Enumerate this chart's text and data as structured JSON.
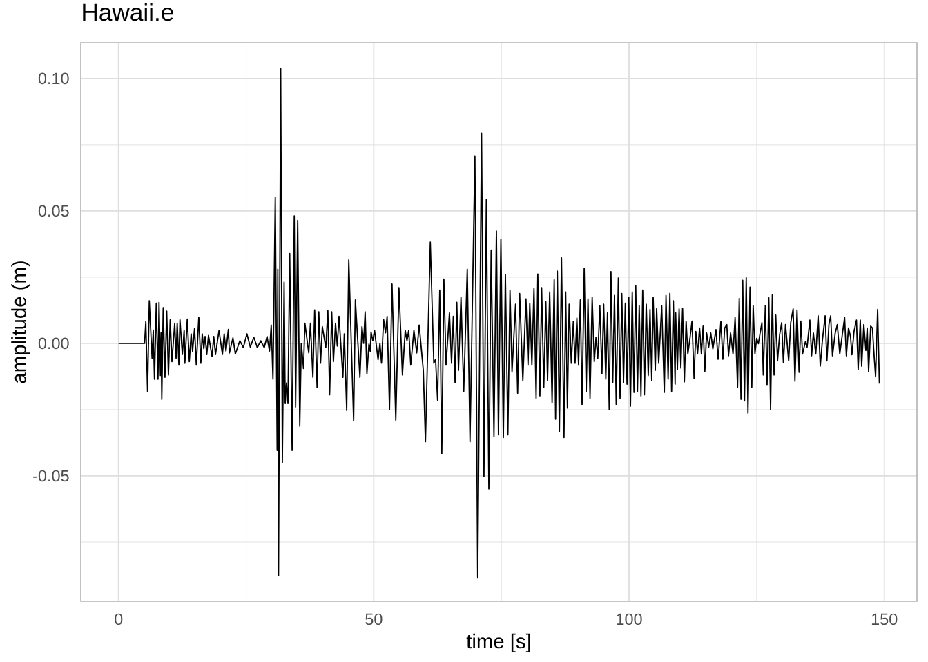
{
  "chart_data": {
    "type": "line",
    "title": "Hawaii.e",
    "xlabel": "time [s]",
    "ylabel": "amplitude (m)",
    "x": [
      0,
      5.1,
      5.34,
      5.68,
      6.02,
      6.57,
      6.8,
      7.04,
      7.39,
      7.73,
      7.93,
      8.2,
      8.33,
      8.47,
      8.75,
      9.09,
      9.43,
      9.77,
      10.12,
      10.46,
      11.0,
      11.27,
      11.49,
      11.82,
      12.03,
      12.5,
      12.85,
      12.99,
      13.46,
      13.86,
      14.22,
      14.5,
      14.89,
      15.23,
      15.72,
      16.12,
      16.39,
      16.7,
      16.95,
      17.28,
      17.62,
      18.31,
      18.65,
      18.99,
      19.68,
      20.35,
      20.69,
      21.04,
      21.51,
      21.72,
      22.41,
      22.88,
      23.77,
      24.45,
      25.14,
      25.81,
      26.5,
      27.18,
      27.86,
      28.54,
      29.09,
      29.57,
      29.91,
      30.25,
      30.7,
      31.07,
      31.2,
      31.34,
      31.76,
      32.09,
      32.43,
      32.64,
      32.9,
      33.19,
      33.53,
      34.0,
      34.42,
      34.69,
      35.09,
      35.5,
      35.8,
      36.23,
      36.5,
      37.26,
      37.59,
      38.07,
      38.42,
      38.89,
      39.23,
      39.57,
      39.92,
      40.6,
      41.0,
      41.35,
      41.76,
      42.09,
      42.51,
      42.85,
      43.19,
      43.95,
      44.22,
      44.69,
      45.1,
      46.05,
      46.39,
      47.28,
      47.69,
      48.0,
      48.31,
      48.65,
      49.05,
      49.3,
      49.47,
      49.8,
      50.15,
      50.84,
      51.2,
      51.51,
      51.93,
      52.3,
      52.61,
      53.08,
      53.57,
      54.31,
      54.93,
      55.61,
      56.16,
      56.5,
      56.84,
      57.24,
      57.86,
      58.41,
      58.89,
      59.7,
      60.12,
      61.07,
      61.76,
      62.1,
      62.5,
      62.92,
      63.32,
      63.73,
      64.15,
      64.82,
      65.23,
      65.58,
      65.92,
      66.26,
      66.59,
      67.08,
      67.62,
      68.31,
      68.85,
      69.81,
      70.35,
      71.11,
      71.58,
      72.05,
      72.54,
      72.99,
      73.54,
      74.02,
      74.42,
      74.9,
      75.38,
      75.78,
      76.27,
      76.68,
      77.08,
      77.77,
      78.18,
      78.58,
      79.2,
      79.81,
      80.22,
      80.56,
      80.97,
      81.38,
      81.8,
      82.13,
      82.54,
      82.88,
      83.3,
      83.7,
      84.04,
      84.46,
      84.93,
      85.34,
      85.61,
      85.96,
      86.36,
      86.77,
      87.26,
      87.59,
      87.93,
      88.27,
      88.69,
      89.09,
      89.43,
      89.78,
      90.12,
      90.46,
      90.8,
      91.22,
      91.62,
      91.96,
      92.36,
      92.78,
      93.19,
      93.53,
      93.88,
      94.28,
      94.69,
      95.03,
      95.45,
      95.78,
      96.12,
      96.46,
      96.81,
      97.15,
      97.49,
      97.91,
      98.24,
      98.58,
      98.92,
      99.27,
      99.61,
      99.95,
      100.28,
      100.63,
      100.97,
      101.31,
      101.65,
      102.0,
      102.34,
      102.68,
      103.01,
      103.37,
      103.77,
      104.11,
      104.45,
      104.73,
      105.14,
      105.41,
      105.81,
      106.4,
      106.91,
      107.24,
      107.66,
      108.0,
      108.34,
      108.69,
      109.03,
      109.13,
      109.47,
      109.81,
      110.15,
      110.49,
      110.84,
      111.18,
      111.52,
      111.85,
      112.34,
      112.74,
      113.08,
      113.42,
      113.82,
      114.18,
      114.51,
      114.85,
      115.19,
      115.61,
      116.01,
      116.42,
      117.03,
      117.45,
      117.99,
      118.39,
      118.73,
      119.15,
      119.49,
      119.89,
      120.37,
      120.78,
      121.26,
      121.59,
      121.93,
      122.27,
      122.62,
      122.96,
      123.3,
      123.7,
      124.05,
      124.32,
      124.66,
      125.0,
      125.34,
      125.68,
      126.03,
      126.3,
      126.7,
      127.04,
      127.38,
      127.73,
      128.07,
      128.41,
      128.74,
      129.09,
      129.5,
      129.9,
      130.24,
      130.65,
      131.27,
      131.68,
      132.15,
      132.5,
      132.91,
      133.31,
      133.65,
      133.99,
      134.54,
      134.88,
      135.42,
      135.76,
      136.11,
      136.58,
      137.05,
      137.46,
      137.88,
      138.42,
      138.76,
      139.16,
      139.5,
      139.85,
      140.39,
      140.8,
      141.28,
      141.82,
      142.23,
      142.57,
      142.99,
      143.39,
      143.66,
      144.07,
      144.55,
      144.89,
      145.3,
      145.57,
      145.99,
      146.39,
      146.66,
      146.93,
      147.34,
      147.67,
      148.03,
      148.3,
      148.7,
      149.04
    ],
    "values": [
      0,
      0,
      0.0082,
      -0.0181,
      0.0161,
      -0.0056,
      0.005,
      -0.0135,
      0.0152,
      -0.0135,
      0.0155,
      -0.0121,
      0.004,
      -0.0211,
      0.0135,
      -0.0128,
      0.0122,
      -0.0119,
      0.0089,
      -0.0069,
      0.0076,
      -0.0056,
      0.0076,
      -0.0082,
      0.0089,
      -0.0042,
      0.0049,
      -0.0075,
      0.0092,
      -0.0069,
      0.0036,
      -0.003,
      0.0056,
      -0.0082,
      0.0099,
      -0.0075,
      0.0036,
      -0.002,
      0.0026,
      -0.0042,
      0.003,
      -0.0049,
      0.0026,
      -0.0042,
      0.0049,
      -0.0042,
      0.0036,
      -0.0029,
      0.0053,
      -0.0036,
      0.0021,
      -0.004,
      0.001,
      -0.0016,
      0.0036,
      -0.0014,
      0.0023,
      -0.0016,
      0.001,
      -0.0016,
      0.0026,
      -0.0029,
      0.0069,
      -0.0135,
      0.0552,
      -0.0404,
      0.028,
      -0.0878,
      0.1039,
      -0.045,
      0.0231,
      -0.0227,
      -0.015,
      -0.0227,
      0.0339,
      -0.0404,
      0.0481,
      -0.024,
      0.0464,
      -0.0312,
      0,
      -0.0095,
      0.0076,
      -0.0036,
      0.0076,
      -0.0128,
      0.0126,
      -0.0167,
      0.0119,
      -0.0075,
      0.0063,
      -0.0016,
      0.0124,
      -0.0194,
      0.0119,
      -0.0069,
      0.0076,
      -0.001,
      0.0102,
      -0.0128,
      0.0036,
      -0.0253,
      0.0315,
      -0.0292,
      0.0164,
      -0.0128,
      0.0063,
      0,
      0.0119,
      -0.0115,
      -0.0003,
      -0.003,
      0.0043,
      0.001,
      0.0049,
      -0.0062,
      0,
      -0.0075,
      0.0089,
      0.004,
      0.0102,
      -0.025,
      0.0224,
      -0.029,
      0.021,
      -0.0119,
      0.0049,
      0.001,
      0.0049,
      -0.0082,
      0.0049,
      -0.0036,
      0.0069,
      -0.0102,
      -0.0371,
      0.0382,
      -0.0075,
      -0.006,
      -0.0214,
      0.0201,
      -0.0417,
      0.0243,
      -0.0082,
      0.0115,
      -0.0075,
      0.0102,
      -0.0148,
      0.0155,
      -0.0102,
      0.0174,
      -0.0181,
      0.028,
      -0.0371,
      0.0707,
      -0.0884,
      0.0793,
      -0.0503,
      0.0543,
      -0.0549,
      0.0352,
      -0.0352,
      0.0424,
      -0.0345,
      0.0394,
      -0.0355,
      0.026,
      -0.0345,
      0.0201,
      -0.0108,
      0.0148,
      -0.0188,
      0.0188,
      -0.0141,
      0.0168,
      -0.0082,
      0.0152,
      -0.0082,
      0.0207,
      -0.0207,
      0.0262,
      -0.0198,
      0.021,
      -0.0167,
      0.0157,
      -0.014,
      0.0194,
      -0.0224,
      0.024,
      -0.0286,
      0.0273,
      -0.0332,
      0.0323,
      -0.0355,
      0.0194,
      -0.0244,
      0.0148,
      -0.0075,
      0.0082,
      -0.0075,
      0.0096,
      -0.0082,
      0.0164,
      -0.0231,
      0.0284,
      -0.0181,
      0.0168,
      -0.0207,
      0.0174,
      -0.0069,
      0.0023,
      -0.0056,
      0.0142,
      -0.0115,
      0.0148,
      -0.0135,
      0.0115,
      -0.025,
      0.0271,
      -0.0148,
      0.0181,
      -0.0231,
      0.0247,
      -0.0207,
      0.0188,
      -0.0148,
      0.0152,
      -0.0154,
      0.0174,
      -0.0237,
      0.0194,
      -0.0185,
      0.0218,
      -0.0181,
      0.0142,
      -0.0198,
      0.0201,
      -0.0194,
      0.0148,
      -0.0121,
      0.0128,
      -0.0141,
      0.0174,
      -0.0102,
      0.0131,
      -0.0075,
      0.0142,
      -0.0185,
      0.0181,
      -0.0135,
      0.0189,
      -0.0181,
      0.0161,
      -0.0154,
      0.0115,
      -0.0099,
      0.013,
      -0.0093,
      0.0133,
      -0.0145,
      0.0084,
      -0.004,
      0.0006,
      0.0084,
      -0.0132,
      0.0045,
      -0.004,
      0.0058,
      -0.004,
      0.0065,
      -0.0106,
      0.0039,
      -0.0014,
      0.0039,
      -0.0021,
      0.0052,
      -0.006,
      0.0082,
      -0.006,
      0.0058,
      0.0071,
      -0.0047,
      0.0039,
      -0.004,
      0.0098,
      -0.0165,
      0.017,
      -0.0211,
      0.0238,
      -0.0217,
      0.0248,
      -0.0263,
      0.0212,
      -0.0165,
      0.0143,
      -0.004,
      0.0019,
      -0.0001,
      0.0039,
      0.0078,
      -0.0119,
      0.0143,
      -0.0158,
      0.0172,
      -0.025,
      0.0183,
      -0.0119,
      0.0107,
      -0.0066,
      0.0032,
      0.0078,
      -0.0073,
      0.0071,
      -0.0066,
      0.0078,
      0.013,
      -0.0143,
      0.0126,
      -0.0109,
      0.0084,
      -0.004,
      0.0006,
      -0.0014,
      0.0088,
      -0.0047,
      0.0039,
      -0.004,
      0.0104,
      -0.0086,
      0.0012,
      0.0104,
      -0.0066,
      0.0071,
      0.0104,
      -0.0047,
      0.0039,
      0.0071,
      -0.004,
      0.0039,
      0.0098,
      -0.0047,
      0.0058,
      0.0025,
      -0.0043,
      0.0045,
      0.0088,
      -0.0099,
      0.0088,
      -0.0086,
      0.0071,
      -0.0027,
      0.0058,
      -0.0106,
      0.0065,
      0.0058,
      -0.0053,
      -0.0126,
      0.0128,
      -0.0152
    ],
    "color": "#000000",
    "xlim": [
      -7.4,
      156.4
    ],
    "ylim": [
      -0.0974,
      0.1135
    ],
    "xticks": [
      0,
      50,
      100,
      150
    ],
    "yticks": [
      {
        "value": -0.05,
        "label": "-0.05"
      },
      {
        "value": 0,
        "label": "0.00"
      },
      {
        "value": 0.05,
        "label": "0.05"
      },
      {
        "value": 0.1,
        "label": "0.10"
      }
    ],
    "grid": true
  }
}
